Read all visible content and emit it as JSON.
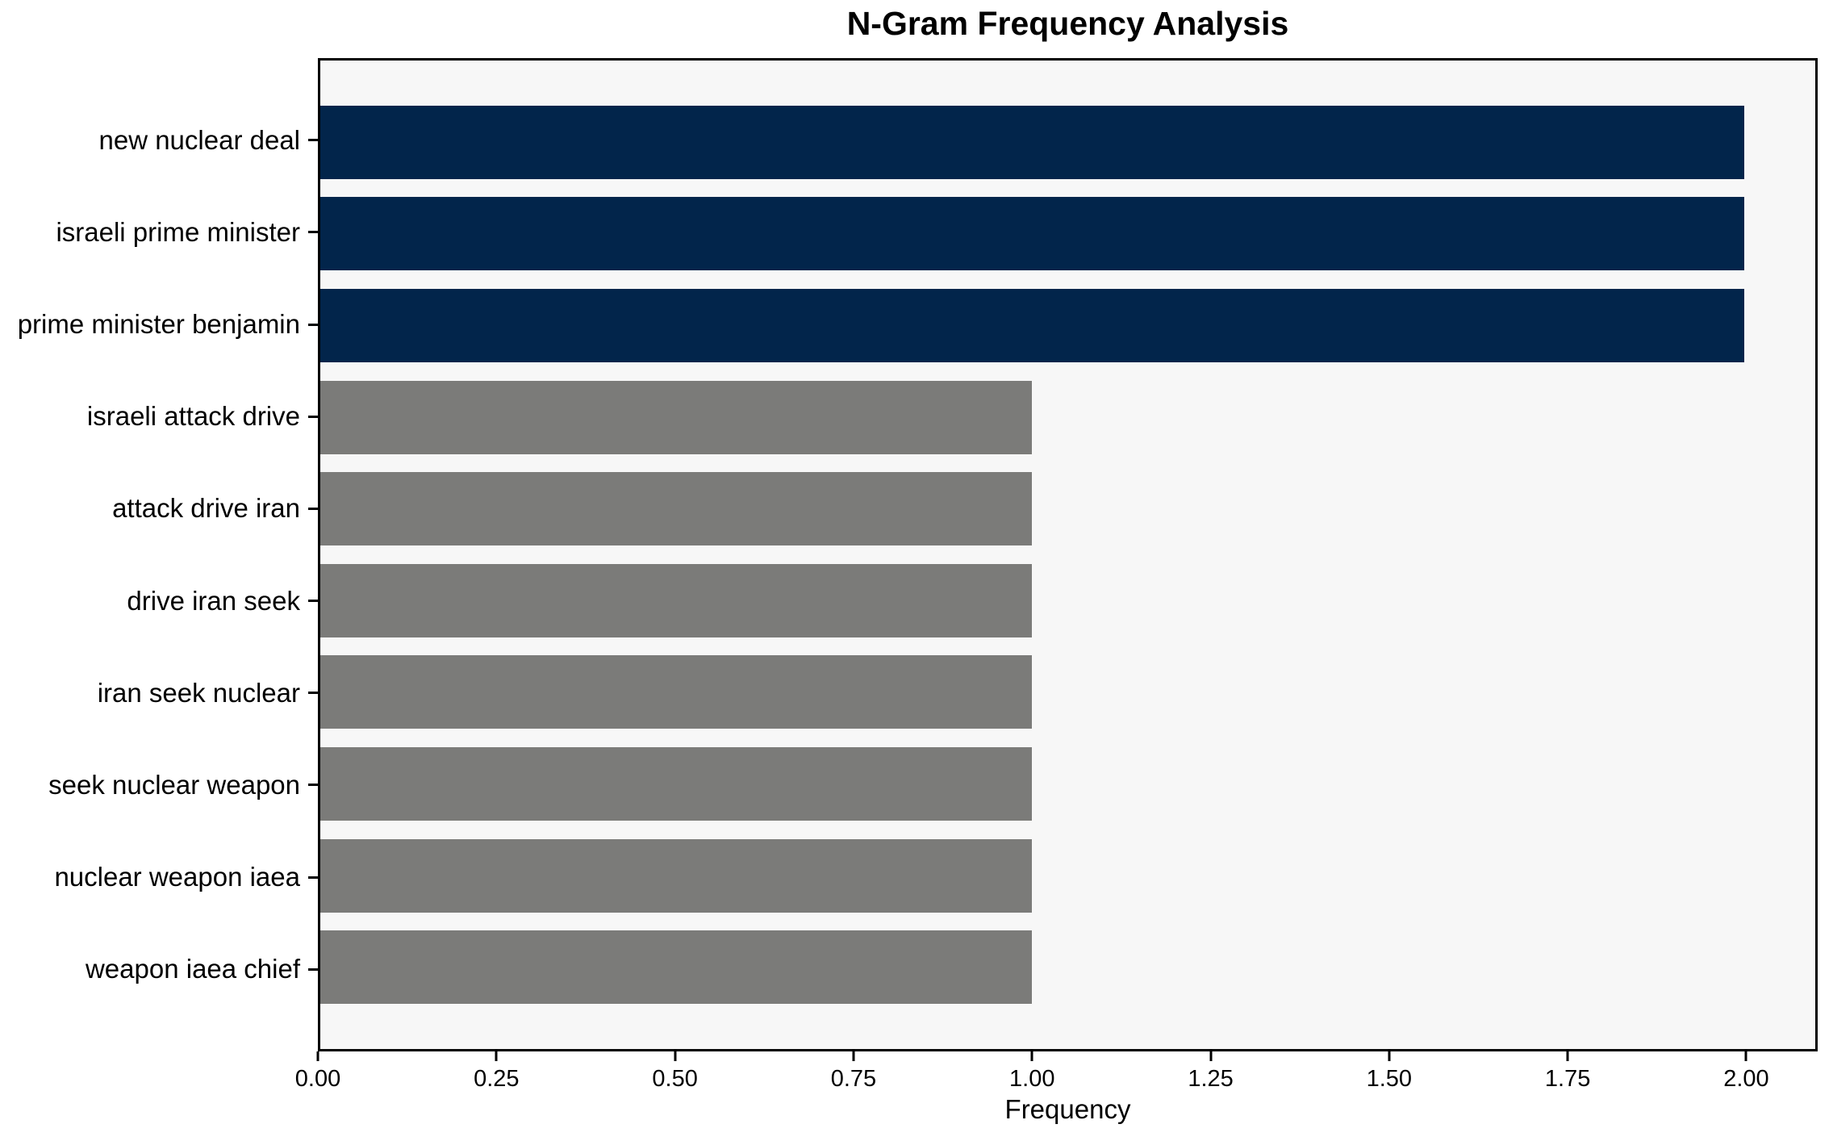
{
  "chart_data": {
    "type": "bar",
    "orientation": "horizontal",
    "title": "N-Gram Frequency Analysis",
    "xlabel": "Frequency",
    "ylabel": "",
    "categories": [
      "new nuclear deal",
      "israeli prime minister",
      "prime minister benjamin",
      "israeli attack drive",
      "attack drive iran",
      "drive iran seek",
      "iran seek nuclear",
      "seek nuclear weapon",
      "nuclear weapon iaea",
      "weapon iaea chief"
    ],
    "values": [
      2,
      2,
      2,
      1,
      1,
      1,
      1,
      1,
      1,
      1
    ],
    "bar_colors": [
      "#02254b",
      "#02254b",
      "#02254b",
      "#7b7b79",
      "#7b7b79",
      "#7b7b79",
      "#7b7b79",
      "#7b7b79",
      "#7b7b79",
      "#7b7b79"
    ],
    "xlim": [
      0,
      2.1
    ],
    "xticks": {
      "values": [
        0,
        0.25,
        0.5,
        0.75,
        1.0,
        1.25,
        1.5,
        1.75,
        2.0
      ],
      "labels": [
        "0.00",
        "0.25",
        "0.50",
        "0.75",
        "1.00",
        "1.25",
        "1.50",
        "1.75",
        "2.00"
      ]
    },
    "grid": false,
    "legend": false,
    "colors": {
      "highlight": "#02254b",
      "muted": "#7b7b79",
      "plot_background": "#f7f7f7",
      "figure_background": "#ffffff",
      "axis": "#000000",
      "text": "#000000"
    }
  }
}
